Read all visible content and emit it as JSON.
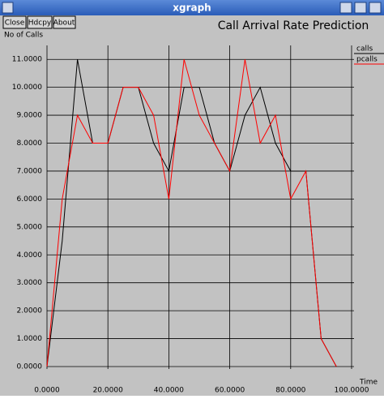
{
  "window": {
    "title": "xgraph",
    "buttons": [
      "Close",
      "Hdcpy",
      "About"
    ]
  },
  "chart_data": {
    "type": "line",
    "title": "Call Arrival Rate Prediction",
    "y_label": "No of Calls",
    "x_label": "Time",
    "x": [
      0,
      5,
      10,
      15,
      20,
      25,
      30,
      35,
      40,
      45,
      50,
      55,
      60,
      65,
      70,
      75,
      80,
      85,
      90,
      95
    ],
    "series": [
      {
        "name": "calls",
        "color": "#000000",
        "values": [
          0,
          4.5,
          11,
          8,
          8,
          10,
          10,
          8,
          7,
          10,
          10,
          8,
          7,
          9,
          10,
          8,
          7,
          7,
          1,
          0
        ]
      },
      {
        "name": "pcalls",
        "color": "#ff0000",
        "values": [
          0,
          6,
          9,
          8,
          8,
          10,
          10,
          9,
          6,
          11,
          9,
          8,
          7,
          11,
          8,
          9,
          6,
          7,
          1,
          0
        ]
      }
    ],
    "xlim": [
      0,
      100
    ],
    "ylim": [
      0,
      11.5
    ],
    "xticks": [
      {
        "value": 0,
        "label": "0.0000"
      },
      {
        "value": 20,
        "label": "20.0000"
      },
      {
        "value": 40,
        "label": "40.0000"
      },
      {
        "value": 60,
        "label": "60.0000"
      },
      {
        "value": 80,
        "label": "80.0000"
      },
      {
        "value": 100,
        "label": "100.0000"
      }
    ],
    "yticks": [
      {
        "value": 0,
        "label": "0.0000"
      },
      {
        "value": 1,
        "label": "1.0000"
      },
      {
        "value": 2,
        "label": "2.0000"
      },
      {
        "value": 3,
        "label": "3.0000"
      },
      {
        "value": 4,
        "label": "4.0000"
      },
      {
        "value": 5,
        "label": "5.0000"
      },
      {
        "value": 6,
        "label": "6.0000"
      },
      {
        "value": 7,
        "label": "7.0000"
      },
      {
        "value": 8,
        "label": "8.0000"
      },
      {
        "value": 9,
        "label": "9.0000"
      },
      {
        "value": 10,
        "label": "10.0000"
      },
      {
        "value": 11,
        "label": "11.0000"
      }
    ],
    "grid": true
  }
}
